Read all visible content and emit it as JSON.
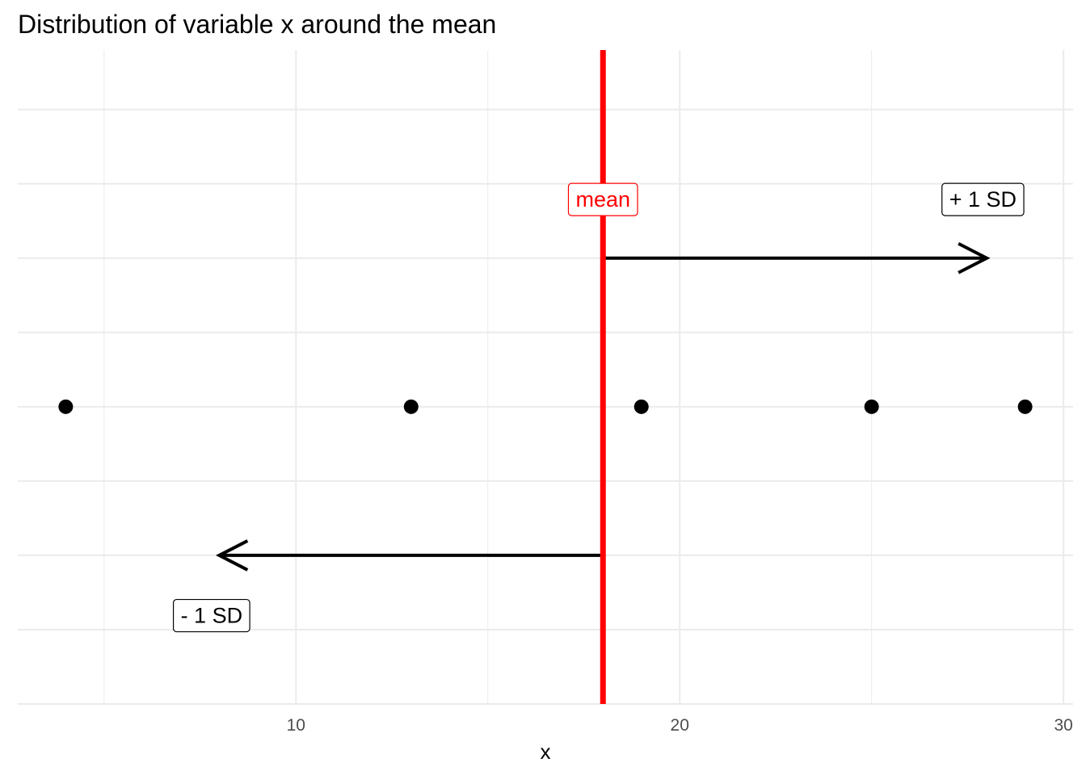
{
  "chart_data": {
    "type": "scatter",
    "title": "Distribution of variable x around the mean",
    "xlabel": "x",
    "ylabel": "",
    "xlim": [
      2.75,
      30.25
    ],
    "ylim": [
      -1,
      1.2
    ],
    "x_ticks": [
      10,
      20,
      30
    ],
    "x_minor_ticks": [
      5,
      15,
      25
    ],
    "y_gridlines": [
      -1,
      -0.75,
      -0.5,
      -0.25,
      0,
      0.25,
      0.5,
      0.75,
      1
    ],
    "grid": true,
    "points": [
      {
        "x": 4,
        "y": 0
      },
      {
        "x": 13,
        "y": 0
      },
      {
        "x": 19,
        "y": 0
      },
      {
        "x": 25,
        "y": 0
      },
      {
        "x": 29,
        "y": 0
      }
    ],
    "mean_line": {
      "x": 18,
      "color": "#ff0000"
    },
    "arrows": [
      {
        "name": "plus-sd",
        "from_x": 18,
        "to_x": 28,
        "y": 0.5
      },
      {
        "name": "minus-sd",
        "from_x": 18,
        "to_x": 8,
        "y": -0.5
      }
    ],
    "labels": [
      {
        "key": "mean",
        "text": "mean",
        "x": 18,
        "y": 0.7,
        "color": "#ff0000"
      },
      {
        "key": "plus-sd",
        "text": "+ 1 SD",
        "x": 27.9,
        "y": 0.7,
        "color": "#000000"
      },
      {
        "key": "minus-sd",
        "text": "- 1 SD",
        "x": 7.8,
        "y": -0.7,
        "color": "#000000"
      }
    ]
  }
}
